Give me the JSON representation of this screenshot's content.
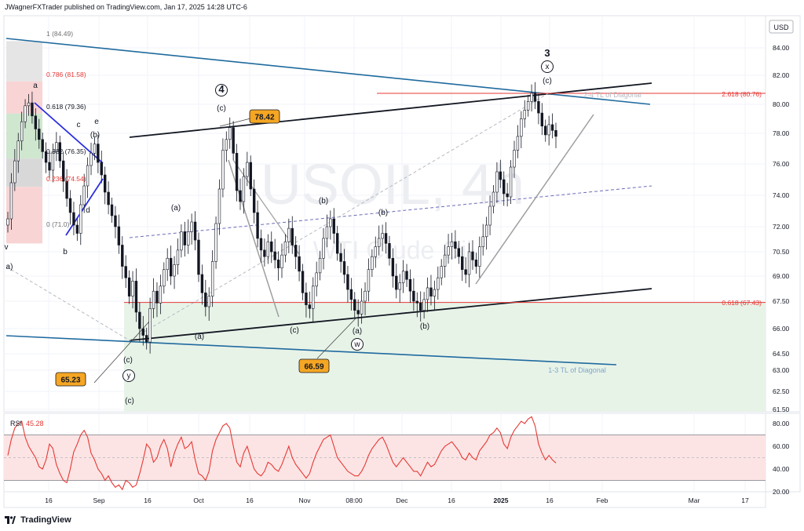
{
  "header": {
    "publisher_line": "JWagnerFXTrader published on TradingView.com, Jan 17, 2025 14:28 UTC-6"
  },
  "footer": {
    "brand": "TradingView"
  },
  "currency_button": "USD",
  "watermark": {
    "symbol": "USOIL, 4h",
    "name": "WTI Crude Oil"
  },
  "chart_data": [
    {
      "type": "line",
      "title": "",
      "series": [
        {
          "name": "",
          "style": "candlestick",
          "x_start": "Aug 4, 2024",
          "x_end": "Jan 17, 2025",
          "values": [
            72.5,
            74.8,
            76.2,
            77.5,
            78.8,
            79.9,
            80.1,
            79.2,
            78.3,
            77.6,
            76.8,
            76.1,
            75.6,
            76.8,
            77.4,
            76.2,
            74.9,
            73.8,
            72.9,
            72.1,
            71.6,
            73.4,
            74.6,
            75.9,
            76.7,
            77.3,
            76.1,
            75.3,
            74.2,
            73.4,
            72.7,
            72.0,
            70.9,
            69.6,
            68.9,
            67.8,
            68.7,
            66.9,
            66.0,
            65.6,
            65.2,
            67.1,
            68.1,
            67.4,
            68.4,
            69.4,
            70.1,
            69.0,
            69.7,
            70.6,
            71.7,
            70.9,
            71.7,
            72.3,
            71.2,
            69.1,
            68.0,
            67.2,
            67.8,
            69.9,
            72.2,
            74.4,
            76.9,
            77.6,
            78.4,
            76.7,
            74.3,
            73.6,
            75.2,
            76.1,
            74.4,
            72.9,
            71.3,
            70.6,
            70.2,
            71.1,
            70.5,
            70.0,
            69.5,
            70.3,
            71.1,
            71.9,
            70.9,
            70.2,
            69.3,
            68.0,
            67.3,
            67.1,
            68.4,
            69.2,
            70.1,
            71.3,
            72.0,
            72.5,
            71.6,
            70.4,
            69.9,
            69.1,
            68.2,
            67.6,
            67.0,
            66.8,
            67.5,
            68.1,
            69.4,
            70.2,
            70.8,
            71.3,
            71.6,
            71.0,
            70.1,
            69.0,
            68.2,
            68.6,
            69.3,
            68.8,
            68.1,
            67.5,
            67.4,
            67.0,
            67.6,
            68.3,
            67.8,
            68.2,
            68.9,
            69.6,
            70.3,
            70.8,
            71.1,
            70.7,
            70.2,
            69.4,
            69.1,
            70.5,
            70.0,
            69.6,
            70.8,
            71.4,
            72.1,
            73.3,
            74.2,
            75.5,
            75.0,
            74.1,
            73.9,
            75.8,
            76.9,
            77.8,
            79.0,
            79.6,
            80.2,
            80.76,
            80.2,
            79.4,
            78.5,
            77.9,
            78.6,
            78.2,
            77.8
          ]
        }
      ],
      "x_tick_labels": [
        "16",
        "Sep",
        "16",
        "Oct",
        "16",
        "Nov",
        "08:00",
        "Dec",
        "16",
        "2025",
        "16",
        "Feb",
        "Mar",
        "17"
      ],
      "y_tick_labels": [
        "84.00",
        "82.00",
        "80.00",
        "78.00",
        "76.00",
        "74.00",
        "72.00",
        "70.50",
        "69.00",
        "67.50",
        "66.00",
        "64.50",
        "63.00",
        "62.50",
        "61.50"
      ],
      "ylim": [
        61.5,
        85.5
      ],
      "grid": true,
      "fib_left": [
        "1 (84.49)",
        "0.786 (81.58)",
        "0.618 (79.36)",
        "0.382 (76.35)",
        "0.236 (74.54)",
        "0 (71.0)"
      ],
      "fib_right": [
        "2.618 (80.76)",
        "0.618 (67.43)"
      ],
      "price_callouts": [
        "78.42",
        "66.59",
        "65.23"
      ],
      "annotations": {
        "trendlines": [
          "1-3 TL of Diagonal",
          "2-4 TL of Diagonal"
        ],
        "wave_labels": [
          "a",
          "b",
          "c",
          "(b)",
          "d",
          "e",
          "(a)",
          "(b)",
          "(c)",
          "(a)",
          "(b)",
          "(c)",
          "(a)",
          "(b)",
          "(c)",
          "(c)",
          "(c)",
          "3",
          "4",
          "w",
          "x",
          "y",
          "y",
          "a)",
          "v"
        ]
      }
    },
    {
      "type": "line",
      "title": "RSI",
      "series": [
        {
          "name": "RSI",
          "values": [
            52,
            66,
            76,
            80,
            82,
            68,
            60,
            55,
            50,
            42,
            40,
            48,
            62,
            58,
            44,
            36,
            30,
            28,
            40,
            55,
            62,
            70,
            74,
            68,
            54,
            48,
            40,
            36,
            30,
            34,
            28,
            24,
            26,
            22,
            30,
            28,
            24,
            26,
            36,
            48,
            62,
            58,
            46,
            50,
            60,
            66,
            58,
            42,
            54,
            62,
            68,
            58,
            60,
            64,
            48,
            36,
            34,
            30,
            38,
            56,
            66,
            72,
            78,
            80,
            76,
            60,
            46,
            42,
            54,
            60,
            50,
            40,
            36,
            34,
            38,
            46,
            44,
            40,
            38,
            44,
            52,
            60,
            50,
            44,
            40,
            36,
            32,
            36,
            46,
            54,
            60,
            66,
            68,
            70,
            60,
            50,
            46,
            42,
            38,
            36,
            34,
            34,
            38,
            44,
            52,
            58,
            62,
            66,
            68,
            62,
            54,
            46,
            42,
            46,
            50,
            46,
            42,
            38,
            38,
            34,
            40,
            46,
            42,
            44,
            50,
            56,
            60,
            62,
            64,
            60,
            56,
            50,
            48,
            54,
            50,
            48,
            56,
            60,
            64,
            70,
            72,
            76,
            72,
            62,
            58,
            68,
            74,
            78,
            82,
            80,
            84,
            86,
            78,
            62,
            54,
            48,
            52,
            48,
            45.28
          ],
          "current_label": "45.28"
        }
      ],
      "y_tick_labels": [
        "80.00",
        "60.00",
        "40.00",
        "20.00"
      ],
      "ylim": [
        18,
        88
      ],
      "bands": [
        70,
        50,
        30
      ]
    }
  ],
  "colors": {
    "candle_up": "#131722",
    "candle_down": "#131722",
    "rsi_line": "#e53935",
    "rsi_band": "#fce4e4",
    "trendline_blue": "#1f6a9e",
    "fib_red": "#e53935",
    "callout_bg": "#f5a623",
    "lower_zone": "#e8f3e8",
    "fib_green": "#cfe6cf"
  }
}
